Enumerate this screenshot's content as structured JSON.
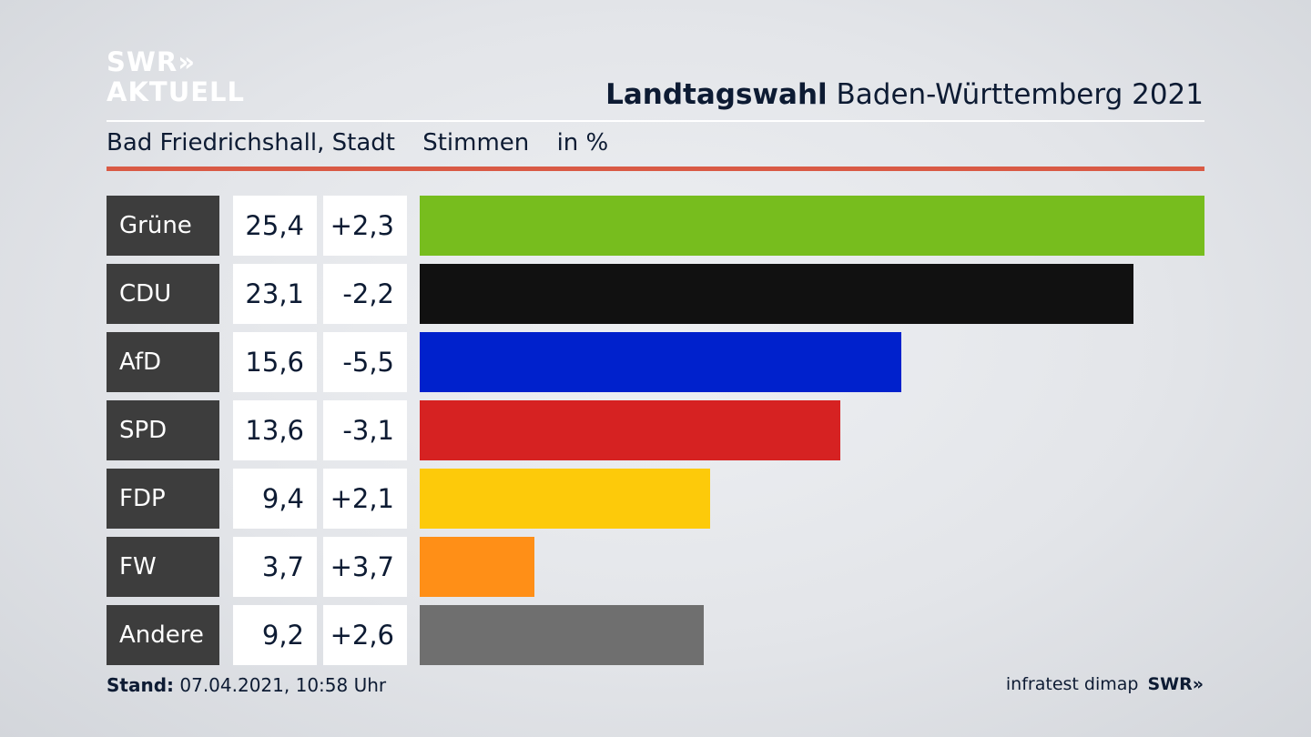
{
  "logo": {
    "line1": "SWR»",
    "line2": "AKTUELL"
  },
  "header": {
    "title_bold": "Landtagswahl",
    "title_rest": " Baden-Württemberg 2021"
  },
  "subheader": {
    "place": "Bad Friedrichshall, Stadt",
    "measure": "Stimmen",
    "unit": "in %"
  },
  "footer": {
    "stand_label": "Stand:",
    "stand_value": " 07.04.2021, 10:58 Uhr",
    "source": "infratest dimap",
    "brand": "SWR»"
  },
  "chart_data": {
    "type": "bar",
    "orientation": "horizontal",
    "categories": [
      "Grüne",
      "CDU",
      "AfD",
      "SPD",
      "FDP",
      "FW",
      "Andere"
    ],
    "values": [
      25.4,
      23.1,
      15.6,
      13.6,
      9.4,
      3.7,
      9.2
    ],
    "values_label": [
      "25,4",
      "23,1",
      "15,6",
      "13,6",
      "9,4",
      "3,7",
      "9,2"
    ],
    "diff_label": [
      "+2,3",
      "-2,2",
      "-5,5",
      "-3,1",
      "+2,1",
      "+3,7",
      "+2,6"
    ],
    "colors": [
      "#77bd1e",
      "#111111",
      "#0021cc",
      "#d62222",
      "#fdca0a",
      "#ff8f17",
      "#6f6f6f"
    ],
    "xlim": [
      0,
      25.4
    ]
  }
}
